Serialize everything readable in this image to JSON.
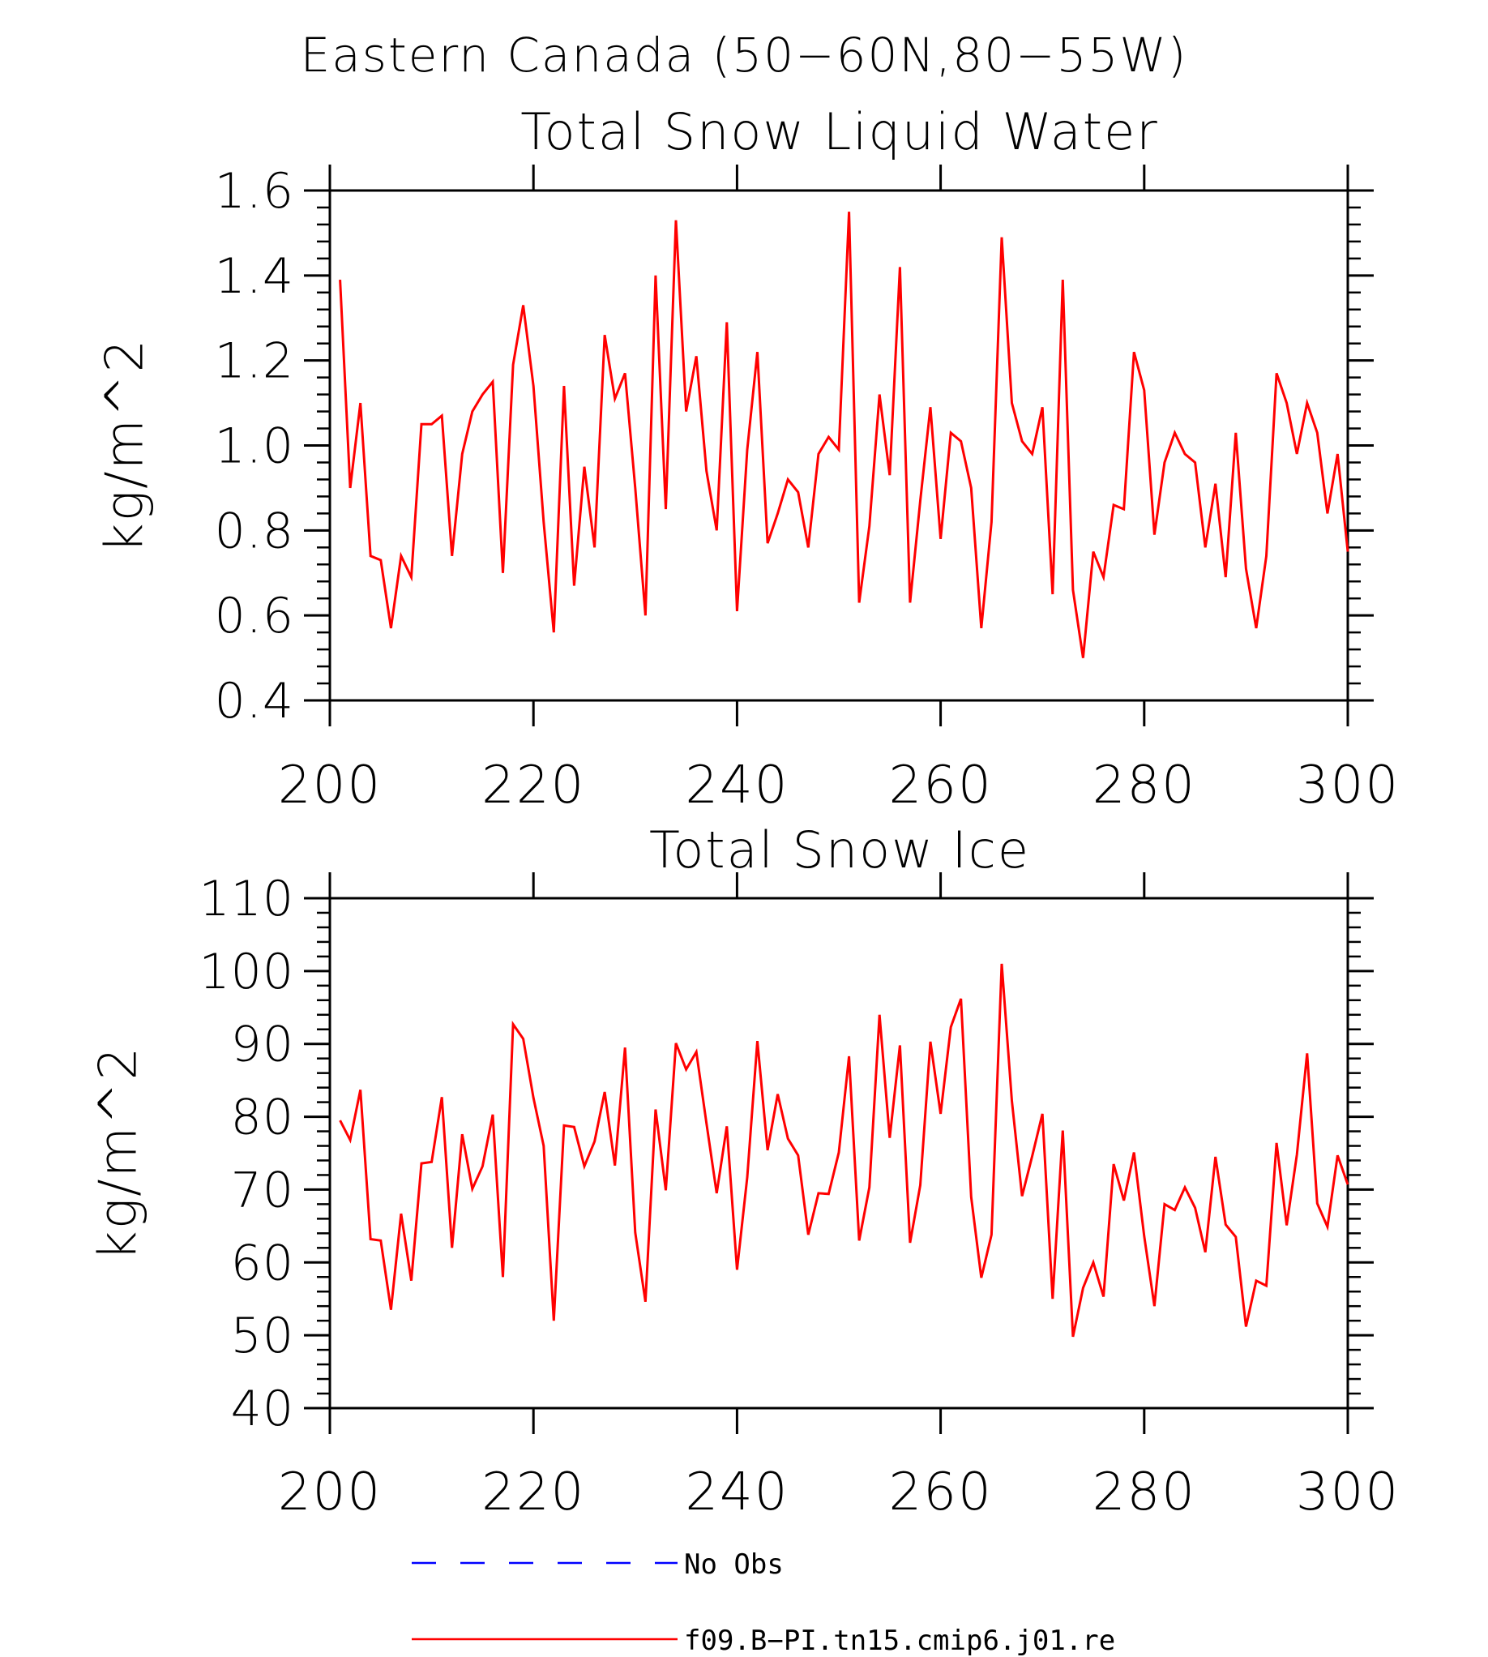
{
  "figure": {
    "title": "Eastern Canada (50−60N,80−55W)"
  },
  "chart_data": [
    {
      "type": "line",
      "title": "Total Snow Liquid Water",
      "xlabel": "",
      "ylabel": "kg/m^2",
      "xlim": [
        200,
        300
      ],
      "ylim": [
        0.4,
        1.6
      ],
      "xticks": [
        200,
        220,
        240,
        260,
        280,
        300
      ],
      "xtick_labels": [
        "200",
        "220",
        "240",
        "260",
        "280",
        "300"
      ],
      "yticks": [
        0.4,
        0.6,
        0.8,
        1.0,
        1.2,
        1.4,
        1.6
      ],
      "ytick_labels": [
        "0.4",
        "0.6",
        "0.8",
        "1.0",
        "1.2",
        "1.4",
        "1.6"
      ],
      "grid": false,
      "series": [
        {
          "name": "f09.B−PI.tn15.cmip6.j01.re",
          "color": "#ff0000",
          "x": [
            201,
            202,
            203,
            204,
            205,
            206,
            207,
            208,
            209,
            210,
            211,
            212,
            213,
            214,
            215,
            216,
            217,
            218,
            219,
            220,
            221,
            222,
            223,
            224,
            225,
            226,
            227,
            228,
            229,
            230,
            231,
            232,
            233,
            234,
            235,
            236,
            237,
            238,
            239,
            240,
            241,
            242,
            243,
            244,
            245,
            246,
            247,
            248,
            249,
            250,
            251,
            252,
            253,
            254,
            255,
            256,
            257,
            258,
            259,
            260,
            261,
            262,
            263,
            264,
            265,
            266,
            267,
            268,
            269,
            270,
            271,
            272,
            273,
            274,
            275,
            276,
            277,
            278,
            279,
            280,
            281,
            282,
            283,
            284,
            285,
            286,
            287,
            288,
            289,
            290,
            291,
            292,
            293,
            294,
            295,
            296,
            297,
            298,
            299,
            300
          ],
          "y": [
            1.39,
            0.9,
            1.1,
            0.74,
            0.73,
            0.57,
            0.74,
            0.69,
            1.05,
            1.05,
            1.07,
            0.74,
            0.98,
            1.08,
            1.12,
            1.15,
            0.7,
            1.19,
            1.33,
            1.14,
            0.82,
            0.56,
            1.14,
            0.67,
            0.95,
            0.76,
            1.26,
            1.11,
            1.17,
            0.9,
            0.6,
            1.4,
            0.85,
            1.53,
            1.08,
            1.21,
            0.94,
            0.8,
            1.29,
            0.61,
            0.99,
            1.22,
            0.77,
            0.84,
            0.92,
            0.89,
            0.76,
            0.98,
            1.02,
            0.99,
            1.55,
            0.63,
            0.81,
            1.12,
            0.93,
            1.42,
            0.63,
            0.87,
            1.09,
            0.78,
            1.03,
            1.01,
            0.9,
            0.57,
            0.82,
            1.49,
            1.1,
            1.01,
            0.98,
            1.09,
            0.65,
            1.39,
            0.66,
            0.5,
            0.75,
            0.69,
            0.86,
            0.85,
            1.22,
            1.13,
            0.79,
            0.96,
            1.03,
            0.98,
            0.96,
            0.76,
            0.91,
            0.69,
            1.03,
            0.71,
            0.57,
            0.74,
            1.17,
            1.1,
            0.98,
            1.1,
            1.03,
            0.84,
            0.98,
            0.75
          ]
        }
      ]
    },
    {
      "type": "line",
      "title": "Total Snow Ice",
      "xlabel": "",
      "ylabel": "kg/m^2",
      "xlim": [
        200,
        300
      ],
      "ylim": [
        40,
        110
      ],
      "xticks": [
        200,
        220,
        240,
        260,
        280,
        300
      ],
      "xtick_labels": [
        "200",
        "220",
        "240",
        "260",
        "280",
        "300"
      ],
      "yticks": [
        40,
        50,
        60,
        70,
        80,
        90,
        100,
        110
      ],
      "ytick_labels": [
        "40",
        "50",
        "60",
        "70",
        "80",
        "90",
        "100",
        "110"
      ],
      "grid": false,
      "series": [
        {
          "name": "f09.B−PI.tn15.cmip6.j01.re",
          "color": "#ff0000",
          "x": [
            201,
            202,
            203,
            204,
            205,
            206,
            207,
            208,
            209,
            210,
            211,
            212,
            213,
            214,
            215,
            216,
            217,
            218,
            219,
            220,
            221,
            222,
            223,
            224,
            225,
            226,
            227,
            228,
            229,
            230,
            231,
            232,
            233,
            234,
            235,
            236,
            237,
            238,
            239,
            240,
            241,
            242,
            243,
            244,
            245,
            246,
            247,
            248,
            249,
            250,
            251,
            252,
            253,
            254,
            255,
            256,
            257,
            258,
            259,
            260,
            261,
            262,
            263,
            264,
            265,
            266,
            267,
            268,
            269,
            270,
            271,
            272,
            273,
            274,
            275,
            276,
            277,
            278,
            279,
            280,
            281,
            282,
            283,
            284,
            285,
            286,
            287,
            288,
            289,
            290,
            291,
            292,
            293,
            294,
            295,
            296,
            297,
            298,
            299,
            300
          ],
          "y": [
            79.5,
            76.8,
            83.7,
            63.2,
            63.0,
            53.5,
            66.7,
            57.5,
            73.6,
            73.8,
            82.7,
            62.0,
            77.6,
            70.1,
            73.2,
            80.3,
            58.0,
            92.7,
            90.7,
            82.6,
            76.0,
            52.0,
            78.8,
            78.6,
            73.2,
            76.6,
            83.4,
            73.3,
            89.5,
            64.1,
            54.6,
            81.0,
            69.9,
            90.1,
            86.5,
            88.9,
            79.1,
            69.5,
            78.7,
            59.0,
            71.7,
            90.4,
            75.4,
            83.1,
            77.0,
            74.7,
            63.8,
            69.5,
            69.4,
            75.1,
            88.3,
            63.0,
            70.3,
            94.0,
            77.1,
            89.8,
            62.7,
            70.6,
            90.3,
            80.4,
            92.3,
            96.2,
            69.0,
            57.9,
            63.8,
            101.0,
            82.2,
            69.1,
            74.6,
            80.4,
            55.0,
            78.1,
            49.8,
            56.5,
            60.0,
            55.3,
            73.5,
            68.5,
            75.1,
            63.6,
            54.0,
            68.0,
            67.2,
            70.3,
            67.5,
            61.4,
            74.5,
            65.2,
            63.5,
            51.2,
            57.5,
            56.8,
            76.4,
            65.1,
            74.8,
            88.7,
            68.1,
            64.9,
            74.7,
            70.7
          ]
        }
      ]
    }
  ],
  "legend": {
    "position": "bottom-center",
    "items": [
      {
        "label": "No Obs",
        "color": "#0000ff",
        "style": "dashed"
      },
      {
        "label": "f09.B−PI.tn15.cmip6.j01.re",
        "color": "#ff0000",
        "style": "solid"
      }
    ]
  }
}
